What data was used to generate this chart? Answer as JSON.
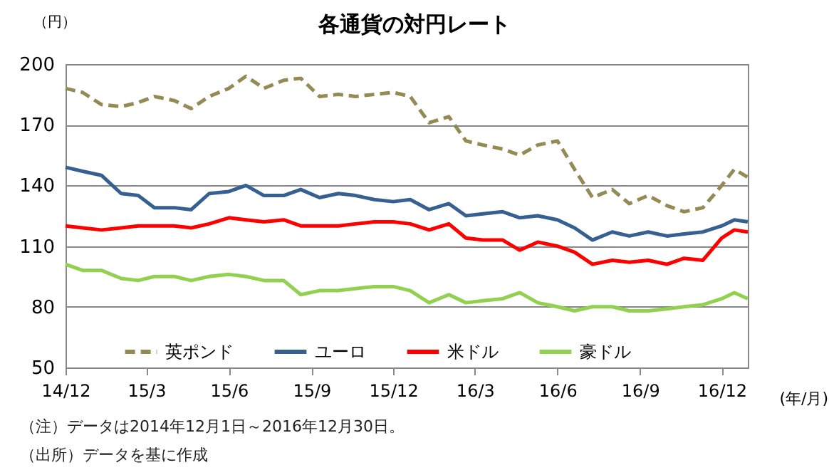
{
  "chart_data": {
    "type": "line",
    "title": "各通貨の対円レート",
    "ylabel": "（円）",
    "xlabel": "(年/月)",
    "x": [
      "2014-12-01",
      "2014-12-20",
      "2015-01-10",
      "2015-02-01",
      "2015-02-20",
      "2015-03-10",
      "2015-04-01",
      "2015-04-20",
      "2015-05-10",
      "2015-06-01",
      "2015-06-20",
      "2015-07-10",
      "2015-08-01",
      "2015-08-20",
      "2015-09-10",
      "2015-10-01",
      "2015-10-20",
      "2015-11-10",
      "2015-12-01",
      "2015-12-20",
      "2016-01-10",
      "2016-02-01",
      "2016-02-20",
      "2016-03-10",
      "2016-04-01",
      "2016-04-20",
      "2016-05-10",
      "2016-06-01",
      "2016-06-20",
      "2016-07-10",
      "2016-08-01",
      "2016-08-20",
      "2016-09-10",
      "2016-10-01",
      "2016-10-20",
      "2016-11-10",
      "2016-12-01",
      "2016-12-15",
      "2016-12-30"
    ],
    "series": [
      {
        "name": "英ポンド",
        "color": "#948a54",
        "line_style": "dashed",
        "values": [
          188,
          186,
          180,
          179,
          181,
          184,
          182,
          178,
          184,
          188,
          194,
          188,
          192,
          193,
          184,
          185,
          184,
          185,
          186,
          184,
          171,
          174,
          162,
          160,
          158,
          155,
          160,
          162,
          148,
          134,
          138,
          131,
          135,
          130,
          127,
          129,
          140,
          148,
          144
        ]
      },
      {
        "name": "ユーロ",
        "color": "#376092",
        "values": [
          149,
          147,
          145,
          136,
          135,
          129,
          129,
          128,
          136,
          137,
          140,
          135,
          135,
          138,
          134,
          136,
          135,
          133,
          132,
          133,
          128,
          131,
          125,
          126,
          127,
          124,
          125,
          123,
          119,
          113,
          117,
          115,
          117,
          115,
          116,
          117,
          120,
          123,
          122
        ]
      },
      {
        "name": "米ドル",
        "color": "#ff0000",
        "values": [
          120,
          119,
          118,
          119,
          120,
          120,
          120,
          119,
          121,
          124,
          123,
          122,
          123,
          120,
          120,
          120,
          121,
          122,
          122,
          121,
          118,
          121,
          114,
          113,
          113,
          108,
          112,
          110,
          107,
          101,
          103,
          102,
          103,
          101,
          104,
          103,
          114,
          118,
          117
        ]
      },
      {
        "name": "豪ドル",
        "color": "#92d050",
        "values": [
          101,
          98,
          98,
          94,
          93,
          95,
          95,
          93,
          95,
          96,
          95,
          93,
          93,
          86,
          88,
          88,
          89,
          90,
          90,
          88,
          82,
          86,
          82,
          83,
          84,
          87,
          82,
          80,
          78,
          80,
          80,
          78,
          78,
          79,
          80,
          81,
          84,
          87,
          84
        ]
      }
    ],
    "xlim": [
      "2014-12-01",
      "2016-12-30"
    ],
    "xticks": [
      {
        "value": "2014-12-01",
        "label": "14/12"
      },
      {
        "value": "2015-03-01",
        "label": "15/3"
      },
      {
        "value": "2015-06-01",
        "label": "15/6"
      },
      {
        "value": "2015-09-01",
        "label": "15/9"
      },
      {
        "value": "2015-12-01",
        "label": "15/12"
      },
      {
        "value": "2016-03-01",
        "label": "16/3"
      },
      {
        "value": "2016-06-01",
        "label": "16/6"
      },
      {
        "value": "2016-09-01",
        "label": "16/9"
      },
      {
        "value": "2016-12-01",
        "label": "16/12"
      }
    ],
    "ylim": [
      50,
      200
    ],
    "yticks": [
      50,
      80,
      110,
      140,
      170,
      200
    ],
    "grid": "y",
    "legend": "bottom",
    "line_style": "solid",
    "annotations": [
      "（注）データは2014年12月1日～2016年12月30日。",
      "（出所）データを基に作成"
    ]
  }
}
